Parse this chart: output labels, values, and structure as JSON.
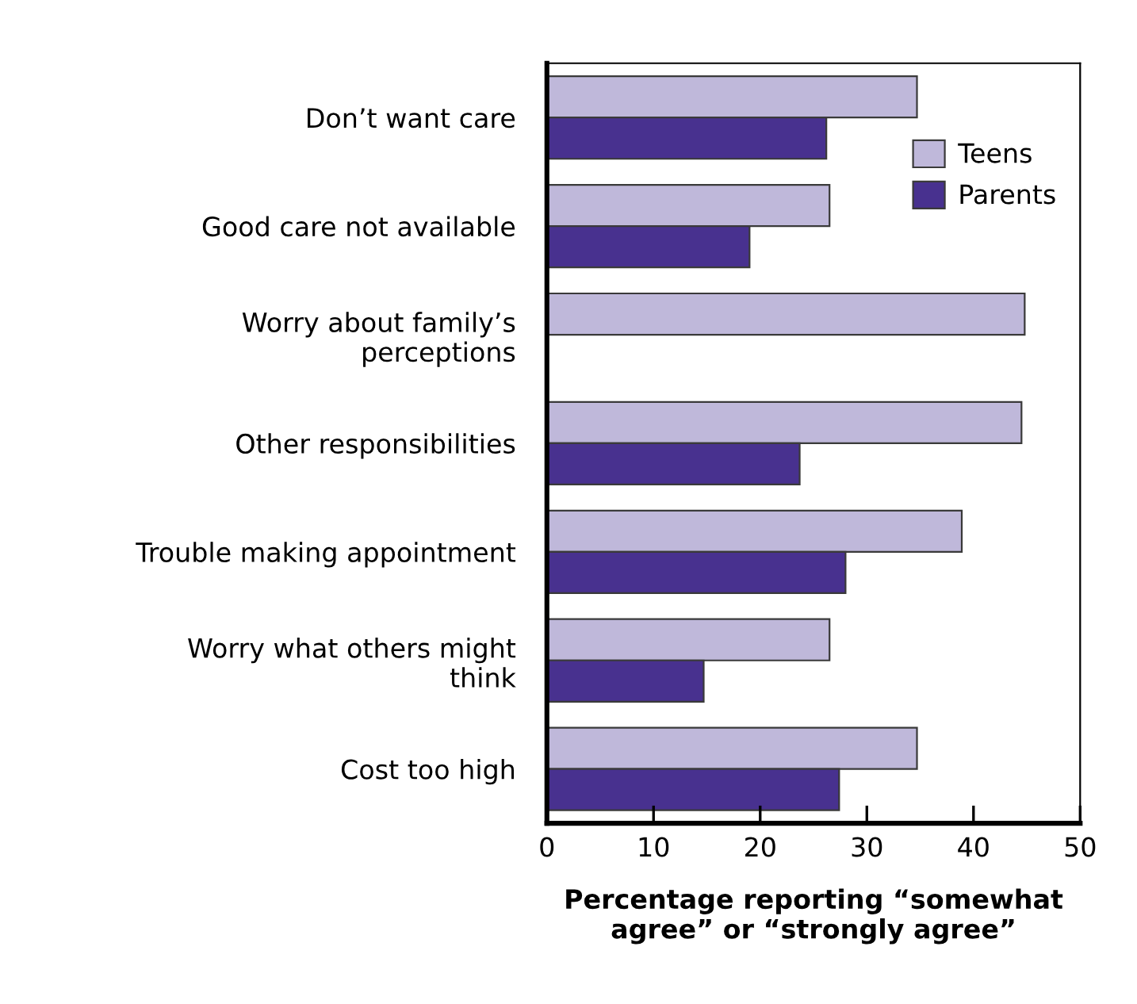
{
  "chart_data": {
    "type": "bar",
    "orientation": "horizontal",
    "categories": [
      "Don’t want care",
      "Good care not available",
      "Worry about family’s\nperceptions",
      "Other responsibilities",
      "Trouble making appointment",
      "Worry what others might\nthink",
      "Cost too high"
    ],
    "series": [
      {
        "name": "Teens",
        "color": "#bfb8da",
        "values": [
          34.7,
          26.5,
          44.8,
          44.5,
          38.9,
          26.5,
          34.7
        ]
      },
      {
        "name": "Parents",
        "color": "#48318f",
        "values": [
          26.2,
          19.0,
          null,
          23.7,
          28.0,
          14.7,
          27.4
        ]
      }
    ],
    "xlabel": "Percentage reporting “somewhat\nagree” or “strongly agree”",
    "xlim": [
      0,
      50
    ],
    "xticks": [
      0,
      10,
      20,
      30,
      40,
      50
    ],
    "legend": "top right",
    "grid": false
  }
}
